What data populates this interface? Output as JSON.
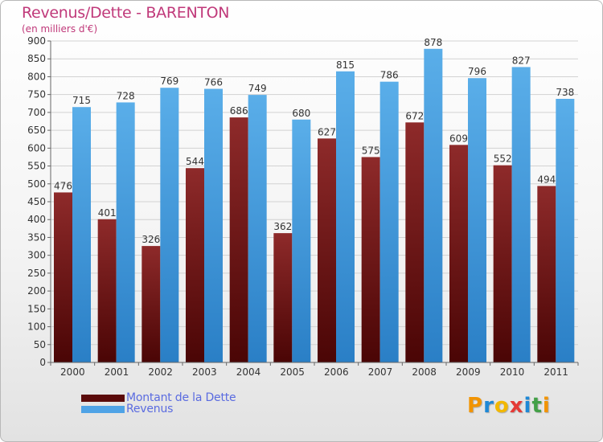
{
  "chart_data": {
    "type": "bar",
    "title": "Revenus/Dette - BARENTON",
    "subtitle": "(en milliers d'€)",
    "categories": [
      "2000",
      "2001",
      "2002",
      "2003",
      "2004",
      "2005",
      "2006",
      "2007",
      "2008",
      "2009",
      "2010",
      "2011"
    ],
    "series": [
      {
        "name": "Montant de la Dette",
        "values": [
          476,
          401,
          326,
          544,
          686,
          362,
          627,
          575,
          672,
          609,
          552,
          494
        ],
        "color": "#7a1c1c"
      },
      {
        "name": "Revenus",
        "values": [
          715,
          728,
          769,
          766,
          749,
          680,
          815,
          786,
          878,
          796,
          827,
          738
        ],
        "color": "#4fa3e6"
      }
    ],
    "ylim": [
      0,
      900
    ],
    "ytick_step": 50,
    "grid": true,
    "legend": "bottom-left"
  },
  "logo": {
    "text": "Proxiti",
    "colors": [
      "#f29400",
      "#1e88d6",
      "#f2b800",
      "#e53935",
      "#1e88d6",
      "#43a047",
      "#f29400"
    ]
  }
}
